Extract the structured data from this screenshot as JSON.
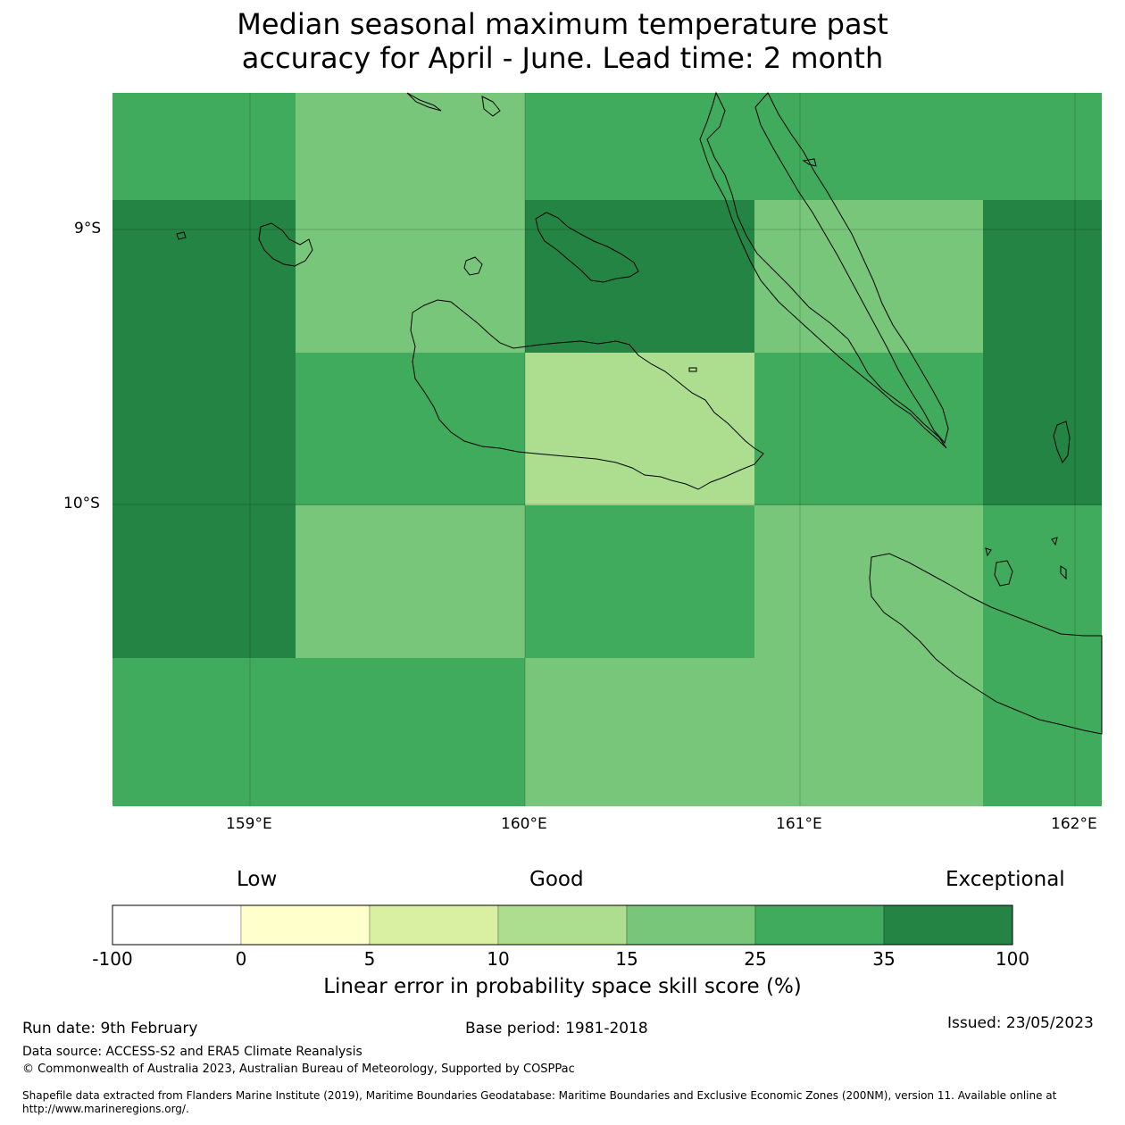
{
  "title": {
    "line1": "Median seasonal maximum temperature past",
    "line2": "accuracy for April - June. Lead time: 2 month"
  },
  "map": {
    "lon_labels": [
      "159°E",
      "160°E",
      "161°E",
      "162°E"
    ],
    "lat_labels": [
      "9°S",
      "10°S"
    ],
    "grid_cells": [
      {
        "row": 0,
        "col": 0,
        "category": "25-35"
      },
      {
        "row": 0,
        "col": 1,
        "category": "15-25"
      },
      {
        "row": 0,
        "col": 2,
        "category": "25-35"
      },
      {
        "row": 0,
        "col": 3,
        "category": "25-35"
      },
      {
        "row": 0,
        "col": 4,
        "category": "25-35"
      },
      {
        "row": 1,
        "col": 0,
        "category": "35-100"
      },
      {
        "row": 1,
        "col": 1,
        "category": "15-25"
      },
      {
        "row": 1,
        "col": 2,
        "category": "35-100"
      },
      {
        "row": 1,
        "col": 3,
        "category": "15-25"
      },
      {
        "row": 1,
        "col": 4,
        "category": "35-100"
      },
      {
        "row": 2,
        "col": 0,
        "category": "35-100"
      },
      {
        "row": 2,
        "col": 1,
        "category": "25-35"
      },
      {
        "row": 2,
        "col": 2,
        "category": "10-15"
      },
      {
        "row": 2,
        "col": 3,
        "category": "25-35"
      },
      {
        "row": 2,
        "col": 4,
        "category": "35-100"
      },
      {
        "row": 3,
        "col": 0,
        "category": "35-100"
      },
      {
        "row": 3,
        "col": 1,
        "category": "15-25"
      },
      {
        "row": 3,
        "col": 2,
        "category": "25-35"
      },
      {
        "row": 3,
        "col": 3,
        "category": "15-25"
      },
      {
        "row": 3,
        "col": 4,
        "category": "25-35"
      },
      {
        "row": 4,
        "col": 0,
        "category": "25-35"
      },
      {
        "row": 4,
        "col": 1,
        "category": "25-35"
      },
      {
        "row": 4,
        "col": 2,
        "category": "15-25"
      },
      {
        "row": 4,
        "col": 3,
        "category": "15-25"
      },
      {
        "row": 4,
        "col": 4,
        "category": "25-35"
      }
    ]
  },
  "legend": {
    "low_label": "Low",
    "good_label": "Good",
    "exceptional_label": "Exceptional",
    "ticks": [
      "-100",
      "0",
      "5",
      "10",
      "15",
      "25",
      "35",
      "100"
    ],
    "colors": [
      "#ffffff",
      "#ffffcc",
      "#d9f0a3",
      "#addd8e",
      "#78c679",
      "#41ab5d",
      "#238443"
    ],
    "title": "Linear error in probability space skill score (%)"
  },
  "footer": {
    "run_date": "Run date: 9th February",
    "base_period": "Base period: 1981-2018",
    "issued": "Issued: 23/05/2023",
    "data_source": "Data source: ACCESS-S2 and ERA5 Climate Reanalysis",
    "copyright": "© Commonwealth of Australia 2023, Australian Bureau of Meteorology, Supported by COSPPac",
    "shapefile_line1": "Shapefile data extracted from Flanders Marine Institute (2019), Maritime Boundaries Geodatabase: Maritime Boundaries and Exclusive Economic Zones (200NM), version 11. Available online at",
    "shapefile_line2": "http://www.marineregions.org/."
  }
}
